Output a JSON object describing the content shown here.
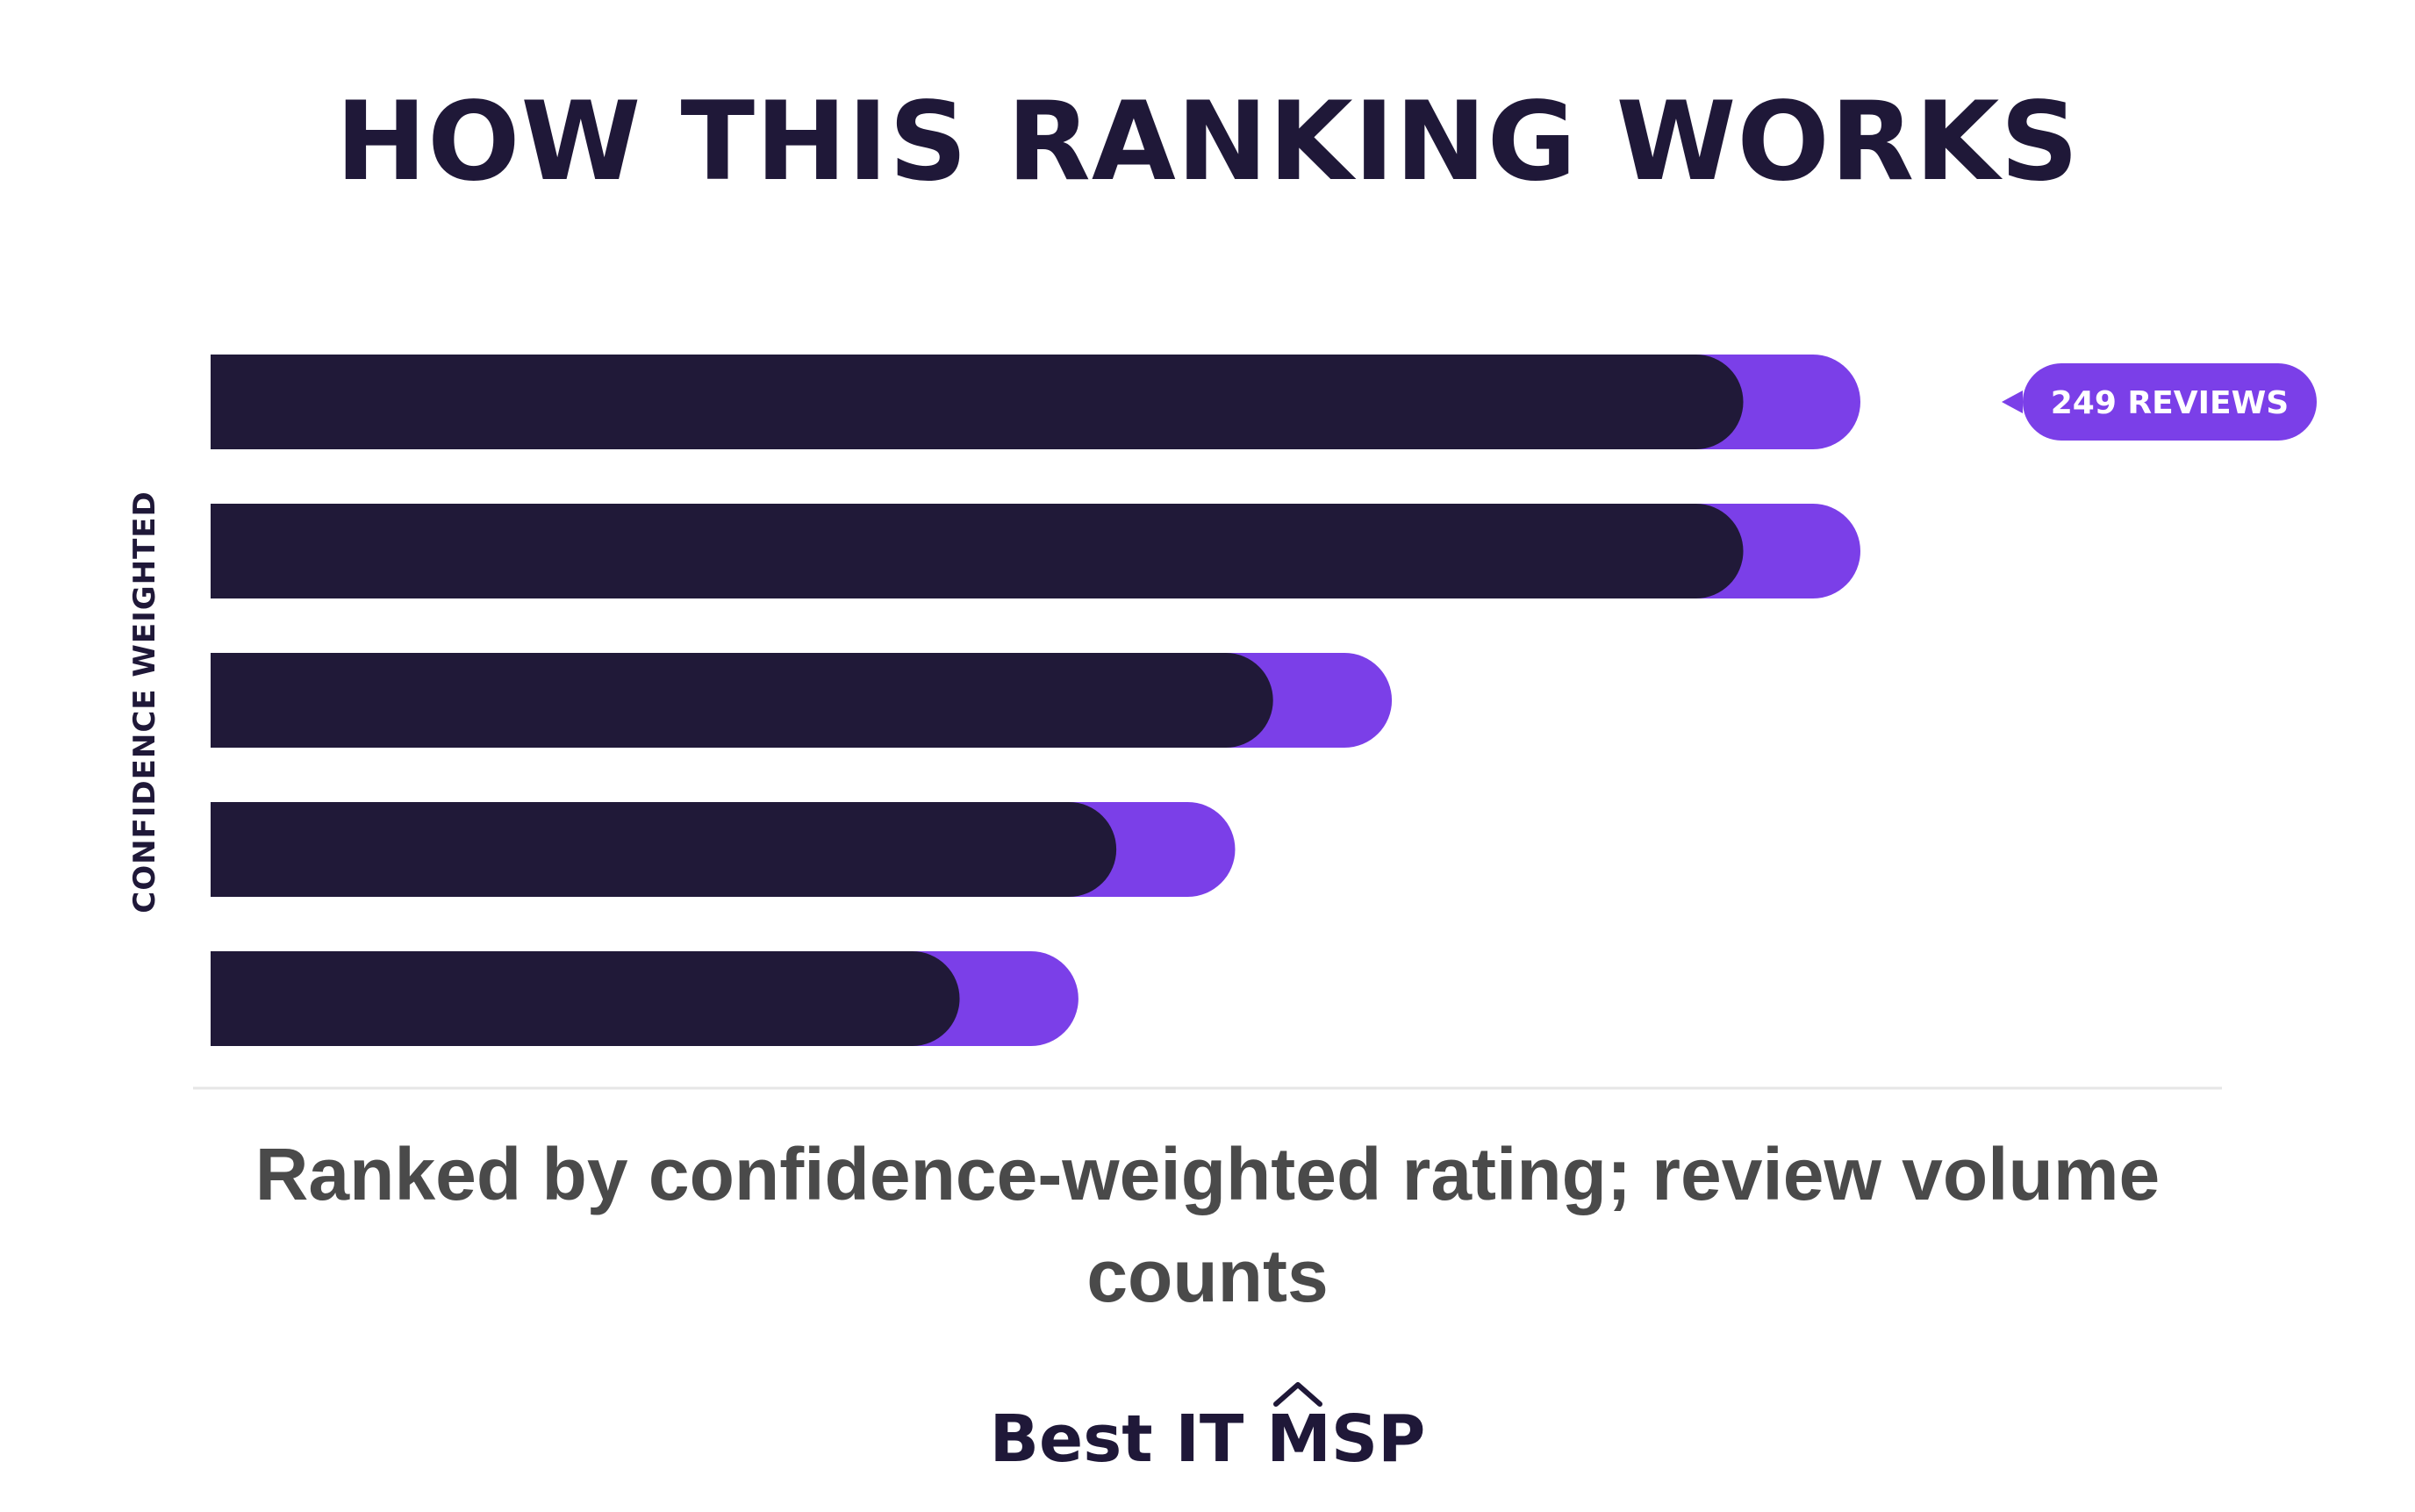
{
  "chart_data": {
    "type": "bar",
    "orientation": "horizontal",
    "title": "HOW THIS RANKING WORKS",
    "ylabel": "CONFIDENCE WEIGHTED",
    "xlabel": "",
    "caption": "Ranked by confidence-weighted rating; review volume counts",
    "grid": false,
    "xlim": [
      0,
      1
    ],
    "series": [
      {
        "values": [
          0.929,
          0.929,
          0.644,
          0.549,
          0.454
        ],
        "color": "#201938"
      },
      {
        "values": [
          0.071,
          0.071,
          0.072,
          0.072,
          0.072
        ],
        "color": "#7b3fe8"
      }
    ],
    "annotation": {
      "row": 0,
      "text": "249 REVIEWS",
      "color": "#7b3fe8"
    }
  },
  "brand": {
    "part1": "Best IT",
    "part2": "MSP"
  }
}
